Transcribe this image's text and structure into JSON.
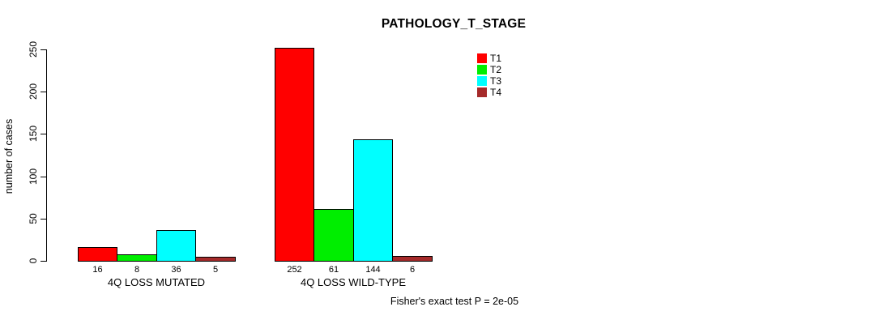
{
  "chart_data": {
    "type": "bar",
    "title": "PATHOLOGY_T_STAGE",
    "ylabel": "number of cases",
    "ylim": [
      0,
      250
    ],
    "yticks": [
      0,
      50,
      100,
      150,
      200,
      250
    ],
    "categories": [
      "4Q LOSS MUTATED",
      "4Q LOSS WILD-TYPE"
    ],
    "series": [
      {
        "name": "T1",
        "color": "#ff0000",
        "values": [
          16,
          252
        ]
      },
      {
        "name": "T2",
        "color": "#00ee00",
        "values": [
          8,
          61
        ]
      },
      {
        "name": "T3",
        "color": "#00ffff",
        "values": [
          36,
          144
        ]
      },
      {
        "name": "T4",
        "color": "#a52a2a",
        "values": [
          5,
          6
        ]
      }
    ],
    "bar_value_labels": [
      [
        "16",
        "8",
        "36",
        "5"
      ],
      [
        "252",
        "61",
        "144",
        "6"
      ]
    ],
    "legend": {
      "position": "top-right",
      "entries": [
        "T1",
        "T2",
        "T3",
        "T4"
      ]
    },
    "annotation": "Fisher's exact test P = 2e-05",
    "grid": false,
    "legend_border": false
  }
}
